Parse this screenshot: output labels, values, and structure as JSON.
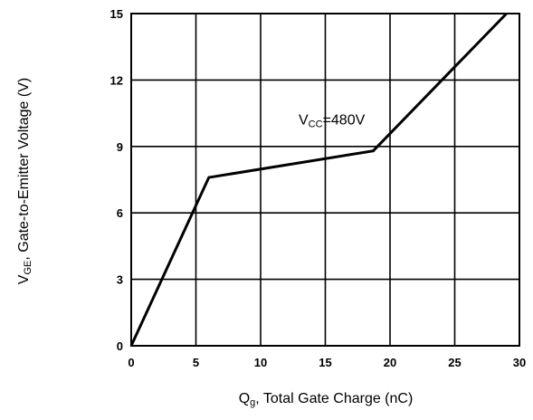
{
  "chart_data": {
    "type": "line",
    "x": [
      0,
      6,
      18.7,
      29
    ],
    "series": [
      {
        "values": [
          0,
          7.6,
          8.8,
          15.1
        ]
      }
    ],
    "xlim": [
      0,
      30
    ],
    "ylim": [
      0,
      15
    ],
    "xticks": [
      0,
      5,
      10,
      15,
      20,
      25,
      30
    ],
    "yticks": [
      0,
      3,
      6,
      9,
      12,
      15
    ],
    "grid": true,
    "xlabel": {
      "main": "Q",
      "sub": "g",
      "rest": ", Total Gate Charge (nC)"
    },
    "ylabel": {
      "main": "V",
      "sub": "GE",
      "rest": ",  Gate-to-Emitter Voltage (V)"
    },
    "annotation": {
      "main": "V",
      "sub": "CC",
      "rest": "=480V",
      "at": [
        15.5,
        10
      ]
    },
    "colors": {
      "line": "#000000",
      "grid": "#000000"
    }
  }
}
